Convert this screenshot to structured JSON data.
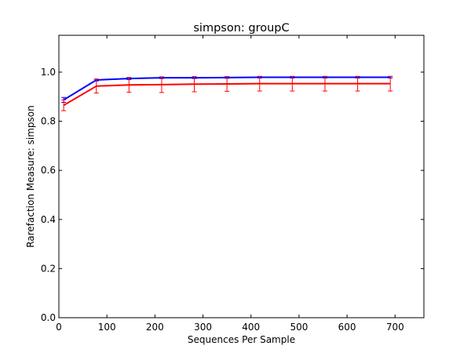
{
  "chart_data": {
    "type": "line",
    "title": "simpson: groupC",
    "xlabel": "Sequences Per Sample",
    "ylabel": "Rarefaction Measure: simpson",
    "xlim": [
      0,
      760
    ],
    "ylim": [
      0.0,
      1.15
    ],
    "xticks": [
      "0",
      "100",
      "200",
      "300",
      "400",
      "500",
      "600",
      "700"
    ],
    "xtick_values": [
      0,
      100,
      200,
      300,
      400,
      500,
      600,
      700
    ],
    "yticks": [
      "0.0",
      "0.2",
      "0.4",
      "0.6",
      "0.8",
      "1.0"
    ],
    "ytick_values": [
      0.0,
      0.2,
      0.4,
      0.6,
      0.8,
      1.0
    ],
    "grid": false,
    "legend": "none",
    "x": [
      10,
      78,
      146,
      214,
      282,
      350,
      418,
      486,
      554,
      622,
      690
    ],
    "series": [
      {
        "color": "#0000ff",
        "values": [
          0.887,
          0.968,
          0.974,
          0.977,
          0.977,
          0.978,
          0.979,
          0.979,
          0.979,
          0.979,
          0.979
        ],
        "error": [
          0.01,
          0.004,
          0.004,
          0.003,
          0.003,
          0.003,
          0.003,
          0.003,
          0.003,
          0.003,
          0.003
        ]
      },
      {
        "color": "#ff0000",
        "values": [
          0.865,
          0.943,
          0.948,
          0.949,
          0.951,
          0.952,
          0.953,
          0.953,
          0.953,
          0.953,
          0.953
        ],
        "error": [
          0.022,
          0.028,
          0.03,
          0.032,
          0.031,
          0.03,
          0.03,
          0.03,
          0.03,
          0.03,
          0.03
        ]
      }
    ]
  }
}
